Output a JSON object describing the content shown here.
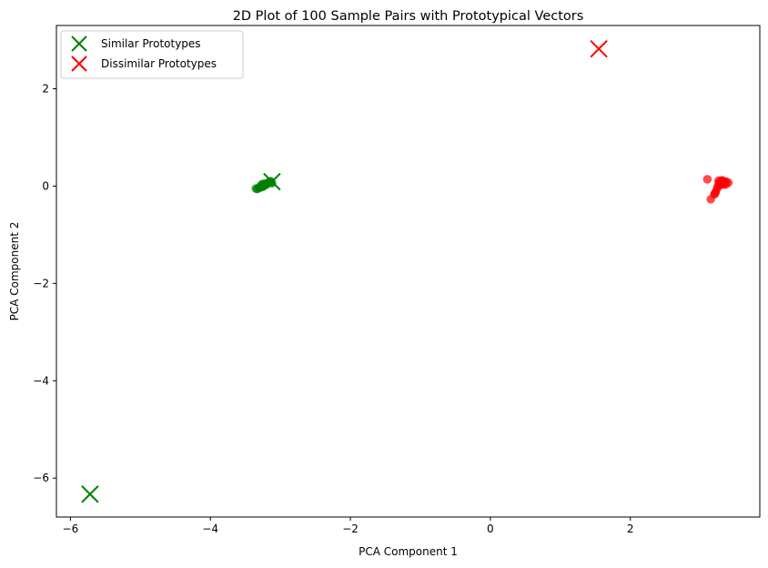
{
  "chart_data": {
    "type": "scatter",
    "title": "2D Plot of 100 Sample Pairs with Prototypical Vectors",
    "xlabel": "PCA Component 1",
    "ylabel": "PCA Component 2",
    "xlim": [
      -6.2,
      3.85
    ],
    "ylim": [
      -6.8,
      3.3
    ],
    "xticks": [
      -6,
      -4,
      -2,
      0,
      2
    ],
    "xtick_labels": [
      "−6",
      "−4",
      "−2",
      "0",
      "2"
    ],
    "yticks": [
      2,
      0,
      -2,
      -4,
      -6
    ],
    "ytick_labels": [
      "2",
      "0",
      "−2",
      "−4",
      "−6"
    ],
    "grid": false,
    "legend_position": "top-left",
    "series": [
      {
        "kind": "points",
        "color": "#008000",
        "alpha": 0.7,
        "x": [
          -3.35,
          -3.33,
          -3.31,
          -3.29,
          -3.27,
          -3.25,
          -3.24,
          -3.22,
          -3.2,
          -3.19,
          -3.18,
          -3.17,
          -3.16,
          -3.15,
          -3.14,
          -3.13,
          -3.12,
          -3.28,
          -3.26,
          -3.23
        ],
        "y": [
          -0.05,
          -0.06,
          -0.04,
          -0.03,
          -0.02,
          -0.01,
          0.0,
          0.02,
          0.03,
          0.05,
          0.06,
          0.07,
          0.08,
          0.09,
          0.1,
          0.08,
          0.06,
          0.01,
          0.04,
          0.05
        ]
      },
      {
        "kind": "points",
        "color": "#ff0000",
        "alpha": 0.7,
        "x": [
          3.1,
          3.15,
          3.2,
          3.22,
          3.25,
          3.27,
          3.28,
          3.3,
          3.32,
          3.33,
          3.35,
          3.37,
          3.4,
          3.24,
          3.29,
          3.31,
          3.26,
          3.21,
          3.36,
          3.34
        ],
        "y": [
          0.14,
          -0.27,
          -0.17,
          -0.12,
          0.0,
          0.05,
          0.08,
          0.1,
          0.07,
          0.04,
          0.06,
          0.09,
          0.07,
          -0.05,
          0.02,
          0.12,
          0.11,
          -0.15,
          0.03,
          0.1
        ]
      },
      {
        "kind": "prototype",
        "name": "Similar Prototypes",
        "color": "#008000",
        "x": [
          -3.12,
          -5.72
        ],
        "y": [
          0.09,
          -6.33
        ]
      },
      {
        "kind": "prototype",
        "name": "Dissimilar Prototypes",
        "color": "#ff0000",
        "x": [
          1.55
        ],
        "y": [
          2.82
        ]
      }
    ]
  }
}
